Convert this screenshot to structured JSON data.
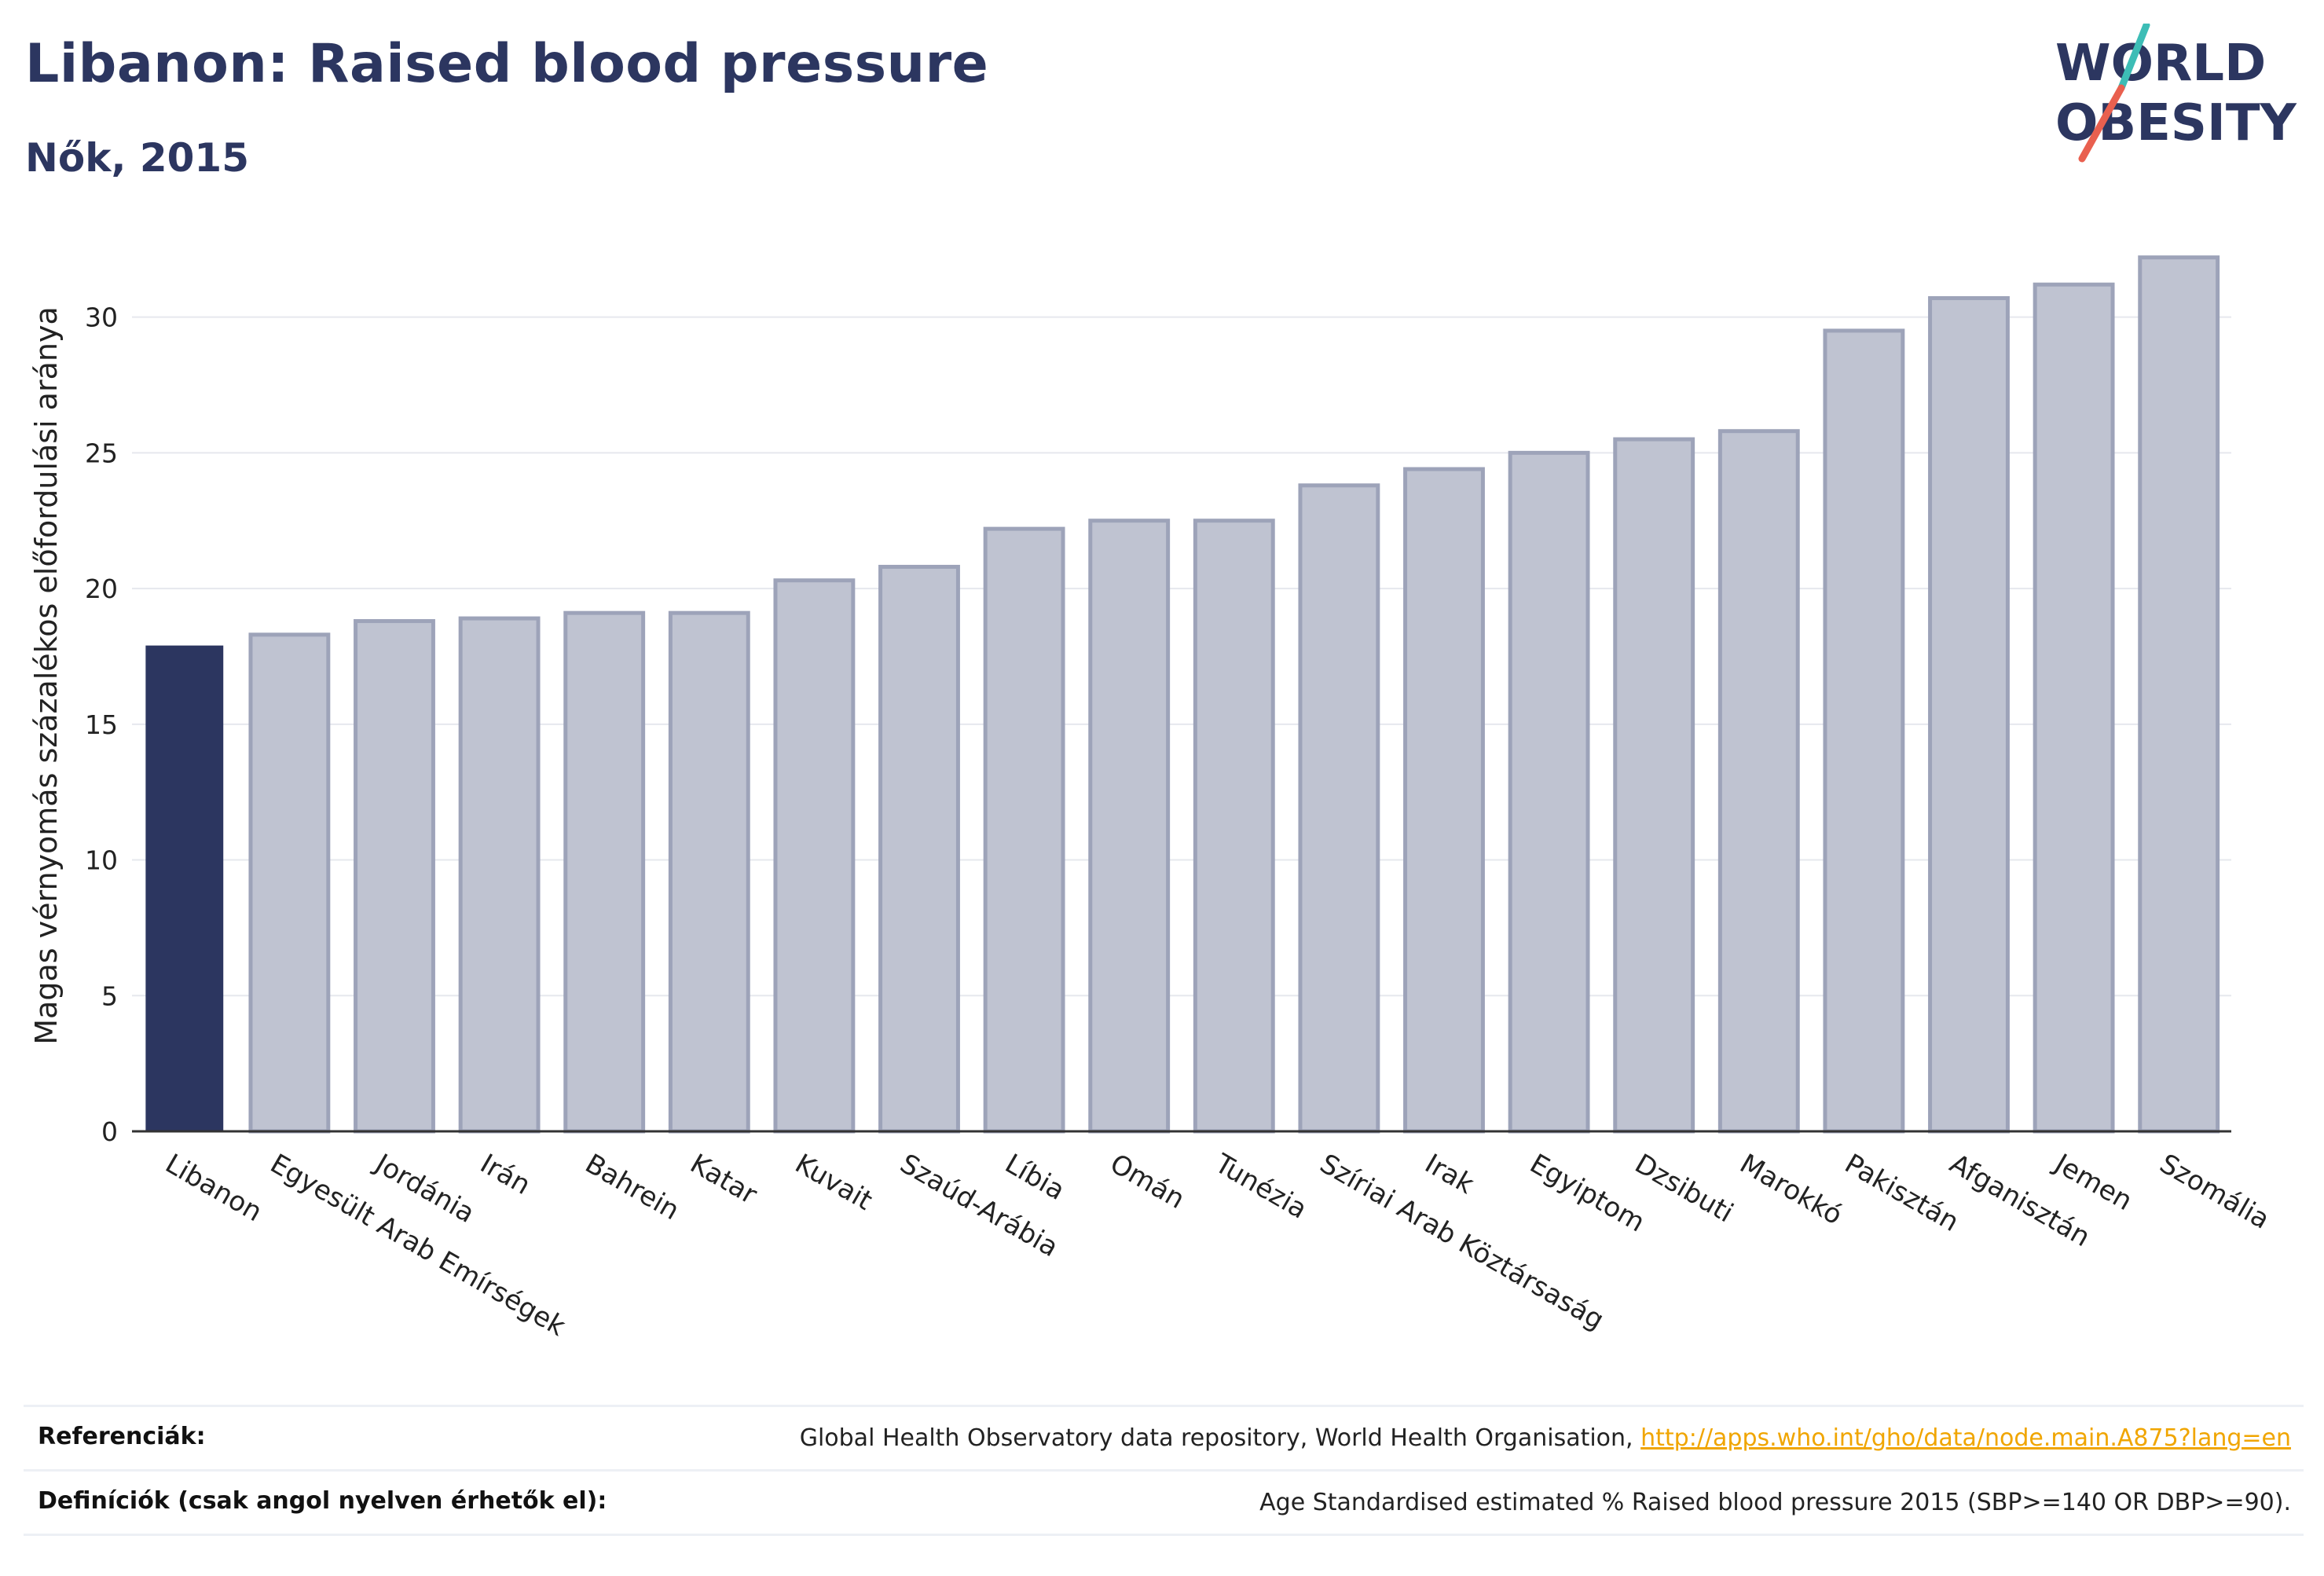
{
  "header": {
    "title": "Libanon: Raised blood pressure",
    "subtitle": "Nők, 2015"
  },
  "logo": {
    "line1": "WORLD",
    "line2": "OBESITY",
    "text_color": "#2c3660",
    "accent_teal": "#3dbdb6",
    "accent_red": "#e9604f"
  },
  "colors": {
    "highlight_bar": "#2c3660",
    "other_bar_fill": "#bfc3d1",
    "other_bar_stroke": "#9da3b9",
    "grid": "#e6e8ee",
    "axis": "#333333"
  },
  "chart_data": {
    "type": "bar",
    "ylabel": "Magas vérnyomás százalékos előfordulási aránya",
    "ylim": [
      0,
      33
    ],
    "yticks": [
      0,
      5,
      10,
      15,
      20,
      25,
      30
    ],
    "grid": true,
    "highlight": "Libanon",
    "categories": [
      "Libanon",
      "Egyesült Arab Emírségek",
      "Jordánia",
      "Irán",
      "Bahrein",
      "Katar",
      "Kuvait",
      "Szaúd-Arábia",
      "Líbia",
      "Omán",
      "Tunézia",
      "Szíriai Arab Köztársaság",
      "Irak",
      "Egyiptom",
      "Dzsibuti",
      "Marokkó",
      "Pakisztán",
      "Afganisztán",
      "Jemen",
      "Szomália"
    ],
    "values": [
      17.9,
      18.3,
      18.8,
      18.9,
      19.1,
      19.1,
      20.3,
      20.8,
      22.2,
      22.5,
      22.5,
      23.8,
      24.4,
      25.0,
      25.5,
      25.8,
      29.5,
      30.7,
      31.2,
      32.2
    ]
  },
  "footer": {
    "references_label": "Referenciák:",
    "references_text": "Global Health Observatory data repository, World Health Organisation,",
    "references_link": "http://apps.who.int/gho/data/node.main.A875?lang=en",
    "definitions_label": "Definíciók (csak angol nyelven érhetők el):",
    "definitions_text": "Age Standardised estimated % Raised blood pressure 2015 (SBP>=140 OR DBP>=90)."
  }
}
